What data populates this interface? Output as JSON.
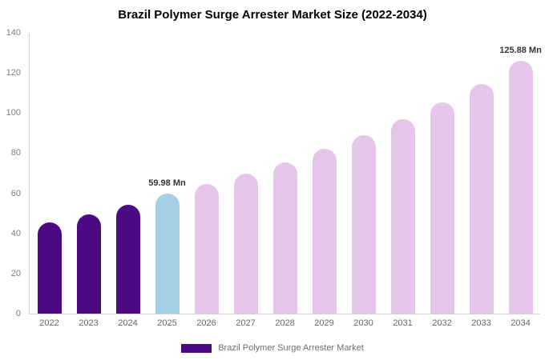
{
  "title": "Brazil Polymer Surge Arrester Market Size (2022-2034)",
  "legend": {
    "label": "Brazil Polymer Surge Arrester Market",
    "swatch_color": "#4b0982"
  },
  "colors": {
    "historical_bar": "#4b0982",
    "current_year_bar": "#a5cfe4",
    "forecast_bar": "#e5c6e8",
    "axis_line": "#d2d2d2",
    "tick_text": "#7d7d7d",
    "xlabel_text": "#666666",
    "annotation_text": "#333333"
  },
  "chart_data": {
    "type": "bar",
    "title": "Brazil Polymer Surge Arrester Market Size (2022-2034)",
    "xlabel": "",
    "ylabel": "",
    "categories": [
      "2022",
      "2023",
      "2024",
      "2025",
      "2026",
      "2027",
      "2028",
      "2029",
      "2030",
      "2031",
      "2032",
      "2033",
      "2034"
    ],
    "values": [
      45.5,
      49.5,
      54.2,
      59.98,
      64.5,
      69.8,
      75.5,
      82,
      89,
      96.8,
      105.2,
      114.5,
      125.88
    ],
    "bar_colors": [
      "#4b0982",
      "#4b0982",
      "#4b0982",
      "#a5cfe4",
      "#e5c6e8",
      "#e5c6e8",
      "#e5c6e8",
      "#e5c6e8",
      "#e5c6e8",
      "#e5c6e8",
      "#e5c6e8",
      "#e5c6e8",
      "#e5c6e8"
    ],
    "annotations": [
      {
        "index": 3,
        "text": "59.98 Mn"
      },
      {
        "index": 12,
        "text": "125.88 Mn"
      }
    ],
    "ylim": [
      0,
      140
    ],
    "yticks": [
      0,
      20,
      40,
      60,
      80,
      100,
      120,
      140
    ],
    "grid": false,
    "legend_position": "bottom",
    "legend_entries": [
      "Brazil Polymer Surge Arrester Market"
    ]
  }
}
